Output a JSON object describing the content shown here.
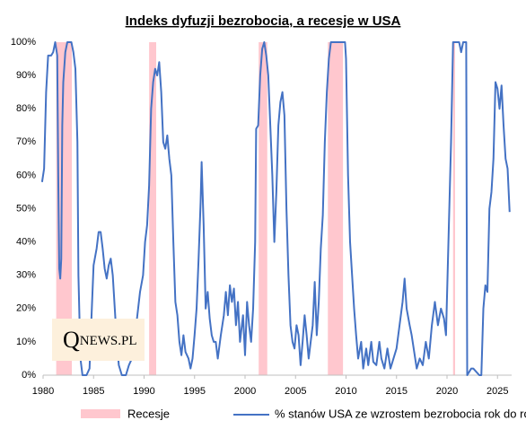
{
  "chart_data": {
    "type": "line",
    "title": "Indeks dyfuzji bezrobocia, a recesje w USA",
    "xlim": [
      1980,
      2026.4
    ],
    "xticks": [
      1980,
      1985,
      1990,
      1995,
      2000,
      2005,
      2010,
      2015,
      2020,
      2025
    ],
    "ylim": [
      0,
      100
    ],
    "yticks": [
      {
        "value": 0,
        "label": "0%"
      },
      {
        "value": 10,
        "label": "10%"
      },
      {
        "value": 20,
        "label": "20%"
      },
      {
        "value": 30,
        "label": "30%"
      },
      {
        "value": 40,
        "label": "40%"
      },
      {
        "value": 50,
        "label": "50%"
      },
      {
        "value": 60,
        "label": "60%"
      },
      {
        "value": 70,
        "label": "70%"
      },
      {
        "value": 80,
        "label": "80%"
      },
      {
        "value": 90,
        "label": "90%"
      },
      {
        "value": 100,
        "label": "100%"
      }
    ],
    "grid": false,
    "recessions": {
      "name": "Recesje",
      "color": "#ffc7ce",
      "periods": [
        {
          "start": 1981.3,
          "end": 1982.85
        },
        {
          "start": 1990.5,
          "end": 1991.2
        },
        {
          "start": 2001.35,
          "end": 2002.2
        },
        {
          "start": 2008.2,
          "end": 2009.7
        },
        {
          "start": 2020.6,
          "end": 2020.8
        }
      ]
    },
    "series": [
      {
        "name": "% stanów USA ze wzrostem bezrobocia rok do roku",
        "color": "#4472c4",
        "x": [
          1979.9,
          1980.1,
          1980.3,
          1980.5,
          1980.8,
          1981.0,
          1981.2,
          1981.4,
          1981.5,
          1981.6,
          1981.7,
          1981.8,
          1981.9,
          1982.0,
          1982.2,
          1982.4,
          1982.8,
          1983.0,
          1983.2,
          1983.4,
          1983.5,
          1983.7,
          1983.9,
          1984.3,
          1984.6,
          1984.8,
          1985.0,
          1985.3,
          1985.5,
          1985.7,
          1985.9,
          1986.1,
          1986.3,
          1986.5,
          1986.7,
          1986.9,
          1987.1,
          1987.3,
          1987.5,
          1987.8,
          1988.2,
          1988.5,
          1988.8,
          1989.0,
          1989.3,
          1989.6,
          1989.9,
          1990.1,
          1990.3,
          1990.5,
          1990.7,
          1990.9,
          1991.1,
          1991.3,
          1991.5,
          1991.7,
          1991.9,
          1992.1,
          1992.3,
          1992.5,
          1992.7,
          1992.9,
          1993.1,
          1993.3,
          1993.5,
          1993.7,
          1993.9,
          1994.1,
          1994.4,
          1994.6,
          1994.8,
          1995.0,
          1995.2,
          1995.4,
          1995.6,
          1995.7,
          1995.9,
          1996.1,
          1996.3,
          1996.5,
          1996.7,
          1996.9,
          1997.1,
          1997.3,
          1997.6,
          1997.9,
          1998.1,
          1998.3,
          1998.5,
          1998.7,
          1998.9,
          1999.1,
          1999.3,
          1999.5,
          1999.8,
          2000.0,
          2000.2,
          2000.4,
          2000.6,
          2000.8,
          2001.0,
          2001.1,
          2001.3,
          2001.5,
          2001.7,
          2001.9,
          2002.1,
          2002.3,
          2002.5,
          2002.7,
          2002.9,
          2003.1,
          2003.3,
          2003.5,
          2003.7,
          2003.9,
          2004.1,
          2004.3,
          2004.5,
          2004.7,
          2004.9,
          2005.1,
          2005.3,
          2005.5,
          2005.7,
          2005.9,
          2006.1,
          2006.3,
          2006.5,
          2006.7,
          2006.9,
          2007.1,
          2007.3,
          2007.5,
          2007.7,
          2007.9,
          2008.1,
          2008.3,
          2008.5,
          2009.5,
          2009.9,
          2010.0,
          2010.2,
          2010.4,
          2010.6,
          2010.8,
          2011.0,
          2011.2,
          2011.5,
          2011.7,
          2012.0,
          2012.2,
          2012.5,
          2012.7,
          2013.0,
          2013.3,
          2013.5,
          2013.8,
          2014.1,
          2014.4,
          2014.7,
          2015.0,
          2015.3,
          2015.6,
          2015.8,
          2016.0,
          2016.3,
          2016.5,
          2016.8,
          2017.0,
          2017.3,
          2017.6,
          2017.9,
          2018.2,
          2018.5,
          2018.8,
          2019.1,
          2019.4,
          2019.7,
          2019.9,
          2020.4,
          2020.6,
          2021.2,
          2021.4,
          2021.6,
          2021.9,
          2022.0,
          2022.4,
          2022.6,
          2023.2,
          2023.4,
          2023.6,
          2023.8,
          2024.0,
          2024.2,
          2024.4,
          2024.6,
          2024.8,
          2025.0,
          2025.2,
          2025.4,
          2025.6,
          2025.8,
          2026.0,
          2026.2
        ],
        "values": [
          58,
          62,
          85,
          96,
          96,
          97,
          100,
          96,
          60,
          32,
          29,
          35,
          75,
          88,
          97,
          100,
          100,
          97,
          92,
          70,
          30,
          5,
          0,
          0,
          2,
          18,
          33,
          38,
          43,
          43,
          38,
          32,
          29,
          33,
          35,
          30,
          20,
          10,
          3,
          0,
          0,
          3,
          5,
          10,
          17,
          25,
          30,
          40,
          45,
          57,
          80,
          88,
          92,
          90,
          94,
          85,
          70,
          68,
          72,
          65,
          60,
          40,
          22,
          18,
          10,
          6,
          12,
          7,
          5,
          2,
          5,
          12,
          20,
          35,
          52,
          64,
          45,
          20,
          25,
          17,
          12,
          10,
          10,
          5,
          12,
          18,
          25,
          18,
          27,
          22,
          26,
          15,
          22,
          10,
          18,
          6,
          22,
          15,
          10,
          20,
          40,
          74,
          75,
          90,
          98,
          100,
          96,
          90,
          75,
          60,
          40,
          55,
          75,
          82,
          85,
          78,
          50,
          30,
          15,
          10,
          8,
          15,
          12,
          3,
          10,
          18,
          12,
          5,
          10,
          15,
          28,
          12,
          22,
          38,
          48,
          70,
          85,
          95,
          100,
          100,
          100,
          95,
          60,
          40,
          30,
          20,
          12,
          5,
          10,
          2,
          8,
          3,
          10,
          4,
          3,
          10,
          5,
          2,
          8,
          2,
          5,
          8,
          15,
          22,
          29,
          20,
          15,
          12,
          6,
          2,
          5,
          3,
          10,
          5,
          15,
          22,
          15,
          20,
          17,
          12,
          70,
          100,
          100,
          97,
          100,
          100,
          0,
          2,
          2,
          0,
          0,
          20,
          27,
          25,
          50,
          55,
          65,
          88,
          86,
          80,
          87,
          75,
          65,
          62,
          49
        ]
      }
    ]
  },
  "logo": {
    "q": "Q",
    "text": "NEWS.PL"
  }
}
